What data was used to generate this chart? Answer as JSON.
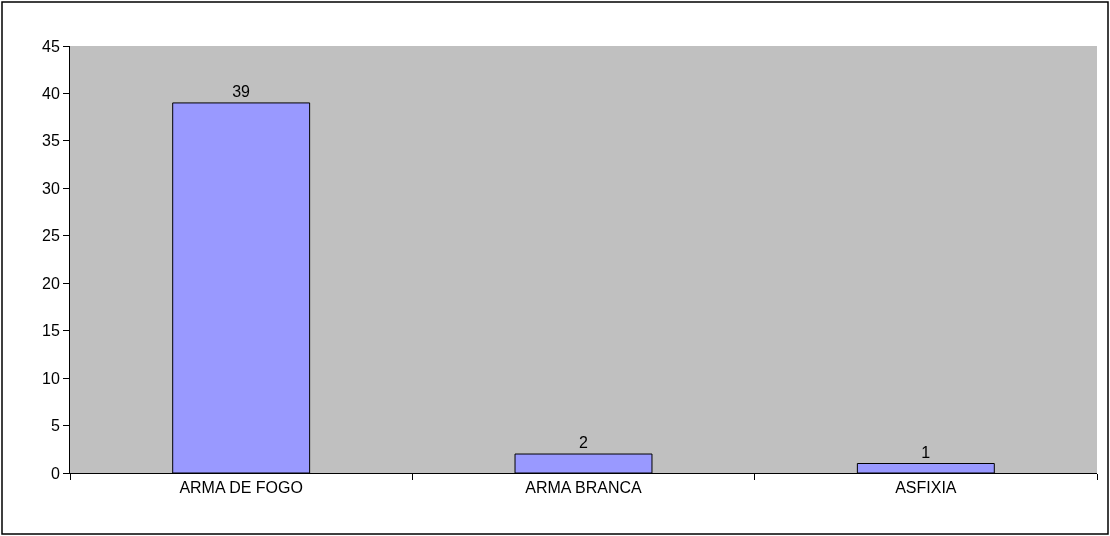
{
  "chart_data": {
    "type": "bar",
    "categories": [
      "ARMA DE FOGO",
      "ARMA BRANCA",
      "ASFIXIA"
    ],
    "values": [
      39,
      2,
      1
    ],
    "color": "#9999ff",
    "ylim": [
      0,
      45
    ],
    "yticks": [
      0,
      5,
      10,
      15,
      20,
      25,
      30,
      35,
      40,
      45
    ],
    "data_labels": true,
    "grid": false
  }
}
